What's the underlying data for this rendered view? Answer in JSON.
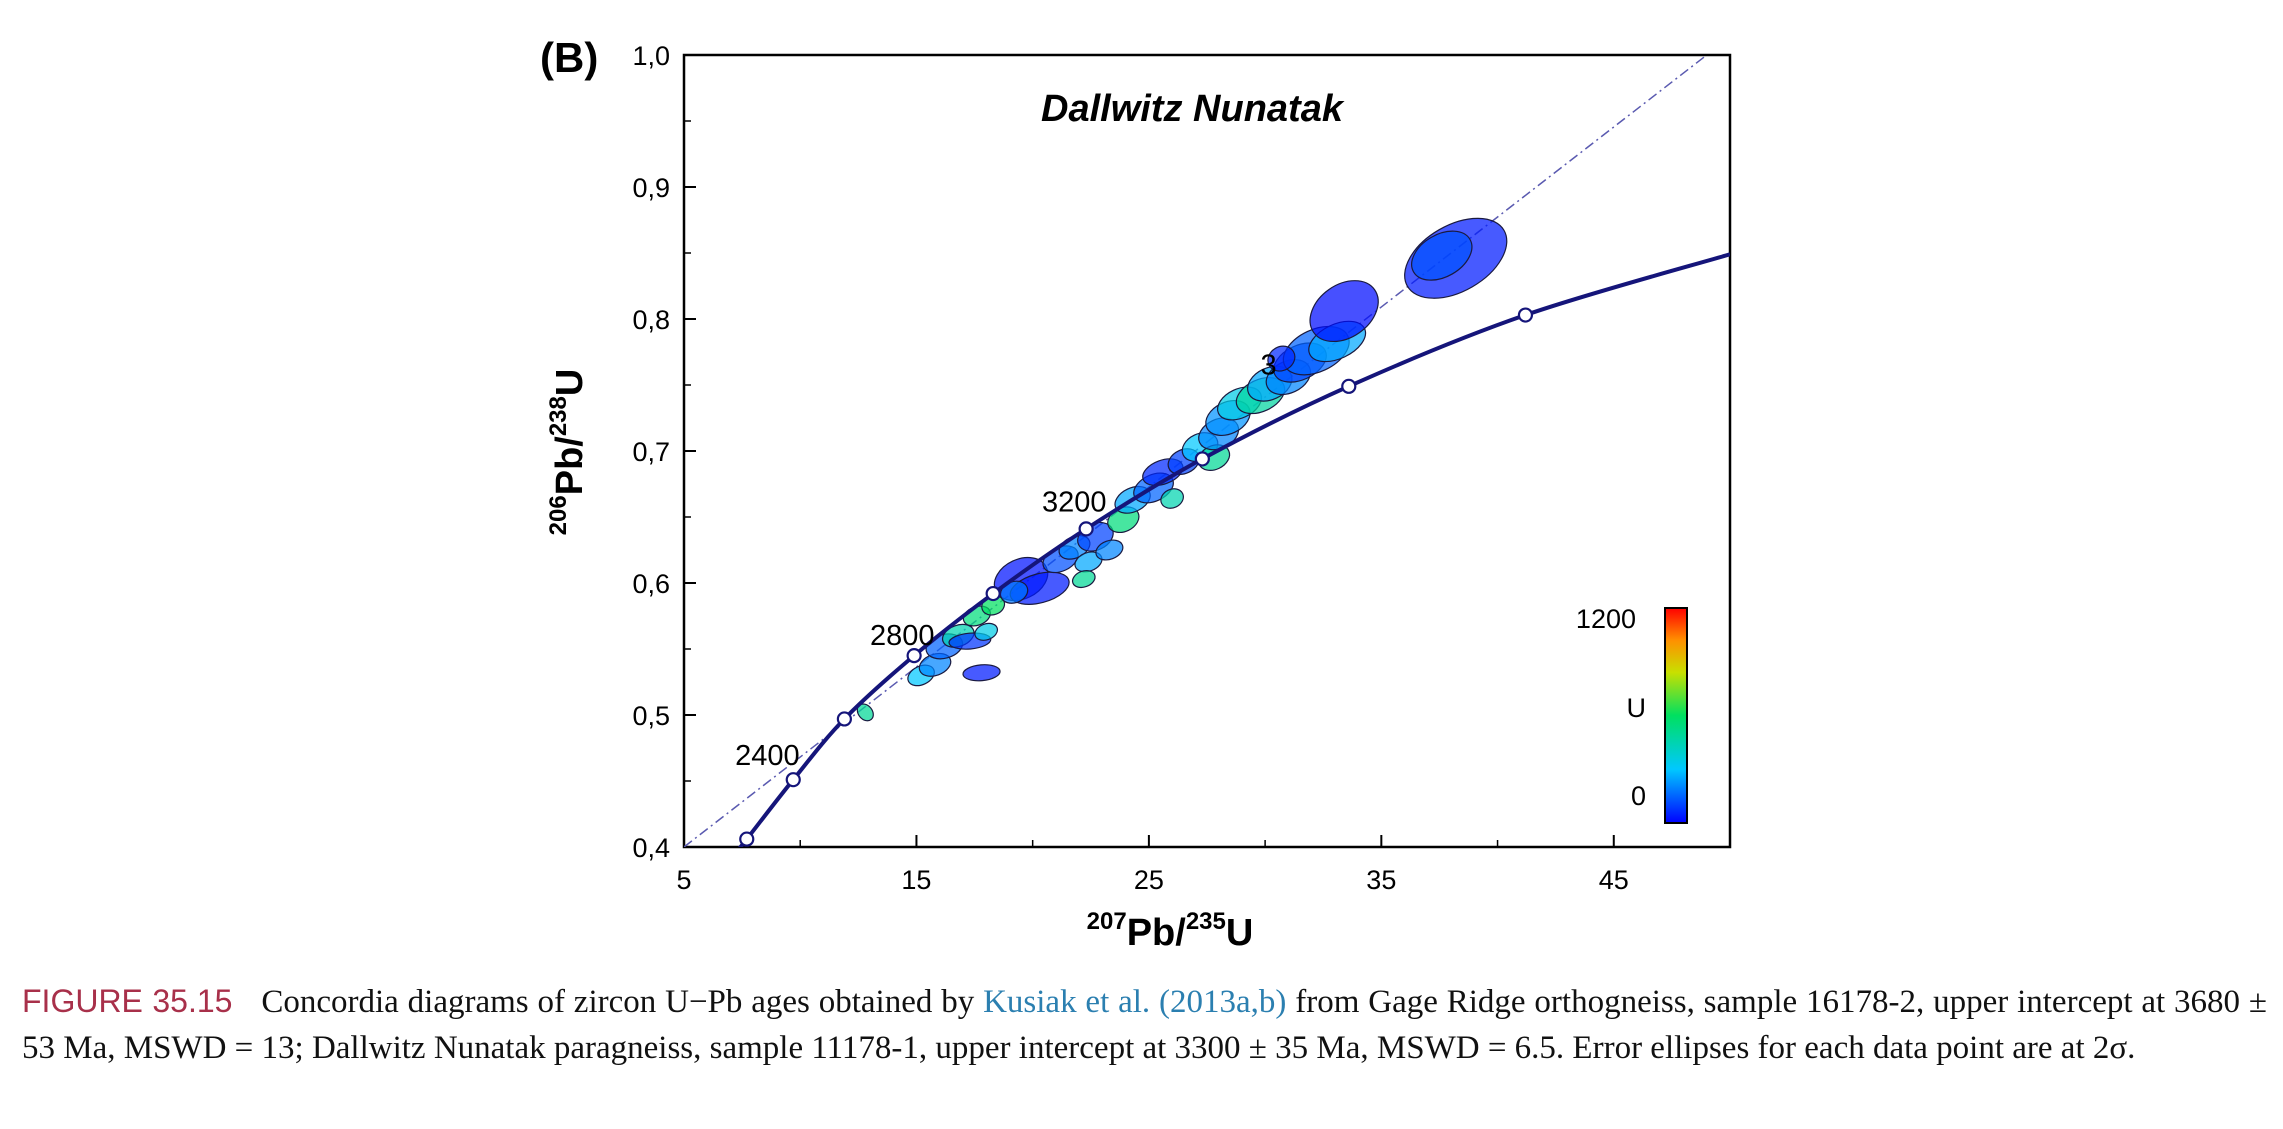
{
  "panel_label": "(B)",
  "chart_data": {
    "type": "scatter",
    "title": "Dallwitz Nunatak",
    "xlabel": {
      "sup": "207",
      "main": "Pb/",
      "sup2": "235",
      "main2": "U"
    },
    "ylabel": {
      "sup": "206",
      "main": "Pb/",
      "sup2": "238",
      "main2": "U"
    },
    "xlim": [
      5,
      50
    ],
    "ylim": [
      0.4,
      1.0
    ],
    "x_ticks": [
      {
        "value": 5,
        "label": "5"
      },
      {
        "value": 15,
        "label": "15"
      },
      {
        "value": 25,
        "label": "25"
      },
      {
        "value": 35,
        "label": "35"
      },
      {
        "value": 45,
        "label": "45"
      }
    ],
    "y_ticks": [
      {
        "value": 0.4,
        "label": "0,4"
      },
      {
        "value": 0.5,
        "label": "0,5"
      },
      {
        "value": 0.6,
        "label": "0,6"
      },
      {
        "value": 0.7,
        "label": "0,7"
      },
      {
        "value": 0.8,
        "label": "0,8"
      },
      {
        "value": 0.9,
        "label": "0,9"
      },
      {
        "value": 1.0,
        "label": "1,0"
      }
    ],
    "concordia_points": [
      {
        "x": 7.7,
        "y": 0.406
      },
      {
        "x": 9.7,
        "y": 0.451
      },
      {
        "x": 11.9,
        "y": 0.497
      },
      {
        "x": 14.9,
        "y": 0.545
      },
      {
        "x": 18.3,
        "y": 0.592
      },
      {
        "x": 22.3,
        "y": 0.641
      },
      {
        "x": 27.3,
        "y": 0.694
      },
      {
        "x": 33.6,
        "y": 0.749
      },
      {
        "x": 41.2,
        "y": 0.803
      }
    ],
    "age_labels": [
      {
        "text": "2400",
        "x": 7.2,
        "y": 0.462
      },
      {
        "text": "2800",
        "x": 13.0,
        "y": 0.553
      },
      {
        "text": "3200",
        "x": 20.4,
        "y": 0.654
      },
      {
        "text": "3",
        "x": 29.8,
        "y": 0.758
      }
    ],
    "discordia_line": {
      "x1": 5.0,
      "y1": 0.4,
      "x2": 49.0,
      "y2": 1.0
    },
    "ellipses": [
      {
        "x": 12.8,
        "y": 0.502,
        "rx": 0.3,
        "ry": 0.007,
        "rot": -40,
        "u": 500
      },
      {
        "x": 15.2,
        "y": 0.53,
        "rx": 0.6,
        "ry": 0.007,
        "rot": -25,
        "u": 300
      },
      {
        "x": 15.8,
        "y": 0.538,
        "rx": 0.7,
        "ry": 0.008,
        "rot": -20,
        "u": 200
      },
      {
        "x": 16.2,
        "y": 0.552,
        "rx": 0.8,
        "ry": 0.009,
        "rot": -15,
        "u": 150
      },
      {
        "x": 16.8,
        "y": 0.56,
        "rx": 0.7,
        "ry": 0.008,
        "rot": -20,
        "u": 450
      },
      {
        "x": 17.3,
        "y": 0.556,
        "rx": 0.9,
        "ry": 0.006,
        "rot": -5,
        "u": 80
      },
      {
        "x": 17.8,
        "y": 0.532,
        "rx": 0.8,
        "ry": 0.006,
        "rot": -5,
        "u": 40
      },
      {
        "x": 17.6,
        "y": 0.575,
        "rx": 0.6,
        "ry": 0.007,
        "rot": -20,
        "u": 550
      },
      {
        "x": 18.3,
        "y": 0.583,
        "rx": 0.5,
        "ry": 0.007,
        "rot": -20,
        "u": 600
      },
      {
        "x": 18.0,
        "y": 0.563,
        "rx": 0.5,
        "ry": 0.006,
        "rot": -20,
        "u": 350
      },
      {
        "x": 19.5,
        "y": 0.603,
        "rx": 1.2,
        "ry": 0.015,
        "rot": -25,
        "u": 30
      },
      {
        "x": 20.3,
        "y": 0.596,
        "rx": 1.3,
        "ry": 0.011,
        "rot": -15,
        "u": 40
      },
      {
        "x": 19.2,
        "y": 0.593,
        "rx": 0.6,
        "ry": 0.008,
        "rot": -20,
        "u": 180
      },
      {
        "x": 21.2,
        "y": 0.618,
        "rx": 0.8,
        "ry": 0.009,
        "rot": -25,
        "u": 120
      },
      {
        "x": 21.8,
        "y": 0.627,
        "rx": 0.7,
        "ry": 0.008,
        "rot": -25,
        "u": 200
      },
      {
        "x": 22.4,
        "y": 0.616,
        "rx": 0.6,
        "ry": 0.007,
        "rot": -20,
        "u": 250
      },
      {
        "x": 22.2,
        "y": 0.603,
        "rx": 0.5,
        "ry": 0.006,
        "rot": -20,
        "u": 500
      },
      {
        "x": 22.7,
        "y": 0.635,
        "rx": 0.8,
        "ry": 0.01,
        "rot": -25,
        "u": 100
      },
      {
        "x": 23.3,
        "y": 0.625,
        "rx": 0.6,
        "ry": 0.007,
        "rot": -20,
        "u": 200
      },
      {
        "x": 23.9,
        "y": 0.648,
        "rx": 0.7,
        "ry": 0.009,
        "rot": -25,
        "u": 550
      },
      {
        "x": 24.3,
        "y": 0.663,
        "rx": 0.8,
        "ry": 0.009,
        "rot": -25,
        "u": 250
      },
      {
        "x": 25.2,
        "y": 0.672,
        "rx": 0.9,
        "ry": 0.01,
        "rot": -25,
        "u": 150
      },
      {
        "x": 25.6,
        "y": 0.684,
        "rx": 0.9,
        "ry": 0.009,
        "rot": -20,
        "u": 60
      },
      {
        "x": 26.0,
        "y": 0.664,
        "rx": 0.5,
        "ry": 0.007,
        "rot": -25,
        "u": 450
      },
      {
        "x": 26.5,
        "y": 0.692,
        "rx": 0.7,
        "ry": 0.009,
        "rot": -25,
        "u": 100
      },
      {
        "x": 27.2,
        "y": 0.703,
        "rx": 0.8,
        "ry": 0.01,
        "rot": -25,
        "u": 300
      },
      {
        "x": 27.8,
        "y": 0.695,
        "rx": 0.7,
        "ry": 0.009,
        "rot": -25,
        "u": 500
      },
      {
        "x": 28.0,
        "y": 0.713,
        "rx": 0.9,
        "ry": 0.011,
        "rot": -25,
        "u": 200
      },
      {
        "x": 28.4,
        "y": 0.725,
        "rx": 1.0,
        "ry": 0.012,
        "rot": -25,
        "u": 220
      },
      {
        "x": 28.9,
        "y": 0.736,
        "rx": 1.0,
        "ry": 0.011,
        "rot": -25,
        "u": 350
      },
      {
        "x": 29.8,
        "y": 0.742,
        "rx": 1.1,
        "ry": 0.012,
        "rot": -25,
        "u": 480
      },
      {
        "x": 30.2,
        "y": 0.751,
        "rx": 1.0,
        "ry": 0.012,
        "rot": -25,
        "u": 250
      },
      {
        "x": 31.0,
        "y": 0.756,
        "rx": 1.0,
        "ry": 0.012,
        "rot": -25,
        "u": 200
      },
      {
        "x": 31.5,
        "y": 0.767,
        "rx": 1.2,
        "ry": 0.013,
        "rot": -25,
        "u": 100
      },
      {
        "x": 32.2,
        "y": 0.776,
        "rx": 1.5,
        "ry": 0.016,
        "rot": -25,
        "u": 150
      },
      {
        "x": 33.1,
        "y": 0.783,
        "rx": 1.3,
        "ry": 0.013,
        "rot": -25,
        "u": 250
      },
      {
        "x": 33.4,
        "y": 0.806,
        "rx": 1.6,
        "ry": 0.02,
        "rot": -35,
        "u": 20
      },
      {
        "x": 30.7,
        "y": 0.77,
        "rx": 0.6,
        "ry": 0.009,
        "rot": -30,
        "u": 60
      },
      {
        "x": 38.2,
        "y": 0.846,
        "rx": 2.4,
        "ry": 0.025,
        "rot": -30,
        "u": 40
      },
      {
        "x": 37.6,
        "y": 0.848,
        "rx": 1.4,
        "ry": 0.016,
        "rot": -30,
        "u": 120
      }
    ],
    "colorbar": {
      "label": "U",
      "max_label": "1200",
      "min_label": "0",
      "min": 0,
      "max": 1200
    }
  },
  "caption": {
    "label": "FIGURE 35.15",
    "text_before": "Concordia diagrams of zircon U−Pb ages obtained by",
    "link": "Kusiak et al. (2013a,b)",
    "text_after": "from Gage Ridge orthogneiss, sample 16178-2, upper intercept at 3680 ± 53 Ma, MSWD = 13; Dallwitz Nunatak paragneiss, sample 11178-1, upper intercept at 3300 ± 35 Ma, MSWD = 6.5. Error ellipses for each data point are at 2σ."
  }
}
